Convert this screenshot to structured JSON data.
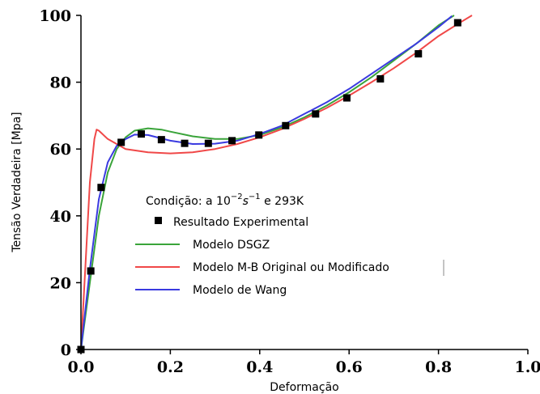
{
  "chart_data": {
    "type": "line",
    "xlabel": "Deformação",
    "ylabel": "Tensão Verdadeira [Mpa]",
    "xlim": [
      0,
      1.0
    ],
    "ylim": [
      0,
      100
    ],
    "x_ticks": [
      "0.0",
      "0.2",
      "0.4",
      "0.6",
      "0.8",
      "1.0"
    ],
    "y_ticks": [
      "0",
      "20",
      "40",
      "60",
      "80",
      "100"
    ],
    "grid": false,
    "legend_position": "center",
    "condition": {
      "prefix": "Condição: a ",
      "base": "10",
      "exponent": "−2",
      "unit": "s",
      "unit_exponent": "−1",
      "suffix": " e 293K"
    },
    "series": [
      {
        "name": "Resultado Experimental",
        "kind": "scatter",
        "color": "#000000",
        "x": [
          0.0,
          0.022,
          0.045,
          0.09,
          0.135,
          0.18,
          0.232,
          0.285,
          0.338,
          0.398,
          0.458,
          0.525,
          0.595,
          0.67,
          0.755,
          0.843
        ],
        "y": [
          0.0,
          23.5,
          48.5,
          62,
          64.5,
          62.8,
          61.7,
          61.7,
          62.5,
          64.2,
          67,
          70.5,
          75.3,
          81,
          88.5,
          97.8
        ]
      },
      {
        "name": "Modelo DSGZ",
        "kind": "line",
        "color": "#3aa43a",
        "x": [
          0.0,
          0.02,
          0.04,
          0.06,
          0.08,
          0.1,
          0.12,
          0.15,
          0.18,
          0.2,
          0.25,
          0.3,
          0.35,
          0.4,
          0.45,
          0.5,
          0.55,
          0.6,
          0.65,
          0.7,
          0.75,
          0.8,
          0.835
        ],
        "y": [
          0.0,
          20,
          40,
          53,
          60,
          63.5,
          65.5,
          66.2,
          65.8,
          65.2,
          63.8,
          63.0,
          63.0,
          64.2,
          66.5,
          69.5,
          73,
          77,
          81.5,
          86.5,
          91.5,
          97,
          100
        ]
      },
      {
        "name": "Modelo M-B Original ou Modificado",
        "kind": "line",
        "color": "#f04848",
        "x": [
          0.0,
          0.01,
          0.02,
          0.03,
          0.035,
          0.04,
          0.06,
          0.1,
          0.15,
          0.2,
          0.25,
          0.3,
          0.35,
          0.4,
          0.45,
          0.5,
          0.55,
          0.6,
          0.65,
          0.7,
          0.75,
          0.8,
          0.85,
          0.875
        ],
        "y": [
          0.0,
          25,
          50,
          63,
          65.8,
          65.5,
          63,
          60,
          59,
          58.7,
          59,
          60,
          61.5,
          63.5,
          66,
          69,
          72.3,
          76,
          80,
          84.2,
          88.8,
          93.8,
          98,
          100
        ]
      },
      {
        "name": "Modelo de Wang",
        "kind": "line",
        "color": "#3a3ae0",
        "x": [
          0.0,
          0.02,
          0.04,
          0.06,
          0.08,
          0.1,
          0.12,
          0.15,
          0.2,
          0.25,
          0.3,
          0.35,
          0.4,
          0.45,
          0.5,
          0.55,
          0.6,
          0.65,
          0.7,
          0.75,
          0.8,
          0.83
        ],
        "y": [
          0.0,
          24,
          45,
          56,
          61,
          63,
          64.3,
          64.2,
          62.5,
          61.5,
          61.6,
          62.5,
          64.5,
          67,
          70.5,
          74,
          78,
          82.5,
          87,
          91.5,
          96.5,
          99.8
        ]
      }
    ]
  }
}
